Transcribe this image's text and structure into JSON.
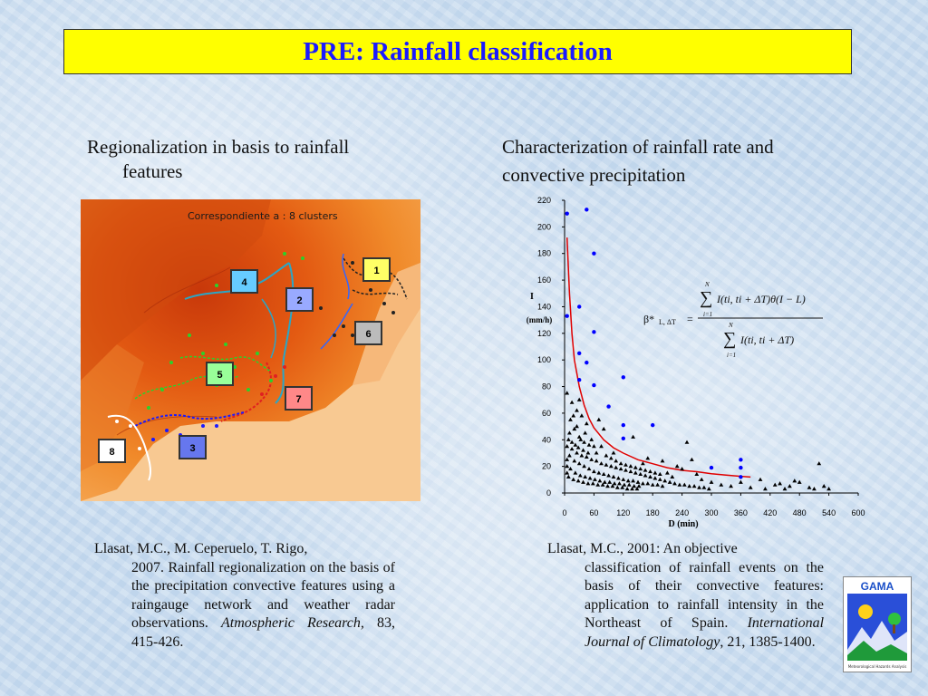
{
  "title": "PRE: Rainfall classification",
  "left": {
    "heading_line1": "Regionalization in basis to rainfall",
    "heading_line2": "features",
    "map_caption": "Correspondiente a : 8 clusters",
    "cluster_labels": [
      "1",
      "2",
      "3",
      "4",
      "5",
      "6",
      "7",
      "8"
    ],
    "reference": {
      "line1": "Llasat, M.C., M. Ceperuelo, T. Rigo,",
      "line2": "2007. Rainfall regionalization on the basis of the precipitation convective features using a raingauge network and weather radar observations.",
      "journal": "Atmospheric Research,",
      "details": " 83, 415-426."
    }
  },
  "right": {
    "heading_line1": "Characterization of rainfall rate and",
    "heading_line2": "convective precipitation",
    "reference": {
      "line1": "Llasat, M.C., 2001: An objective",
      "line2": "classification of rainfall events on the basis of their convective features: application to rainfall intensity in the Northeast of Spain.",
      "journal": "International Journal of Climatology",
      "details": ", 21, 1385-1400."
    }
  },
  "formula": {
    "lhs": "β*",
    "lhs_sub": "L, ΔT",
    "equals": "=",
    "sum_top": "N",
    "sum_bottom": "i=1",
    "numerator": "I(ti, ti + ΔT)θ(I − L)",
    "denominator": "I(ti, ti + ΔT)"
  },
  "logo": {
    "text": "GAMA",
    "subtitle": "Meteorological Hazards Analysis"
  },
  "colors": {
    "title_bg": "#ffff00",
    "title_text": "#1a1aff",
    "fit_curve": "#e00000",
    "blue_points": "#0000ff",
    "black_points": "#000000"
  },
  "chart_data": {
    "type": "scatter",
    "xlabel": "D (min)",
    "ylabel": "I",
    "ylabel_unit": "(mm/h)",
    "xlim": [
      0,
      600
    ],
    "ylim": [
      0,
      220
    ],
    "xticks": [
      0,
      60,
      120,
      180,
      240,
      300,
      360,
      420,
      480,
      540,
      600
    ],
    "yticks": [
      0,
      20,
      40,
      60,
      80,
      100,
      120,
      140,
      160,
      180,
      200,
      220
    ],
    "series": [
      {
        "marker": "circle",
        "color": "#0000ff",
        "points": [
          [
            5,
            210
          ],
          [
            45,
            213
          ],
          [
            60,
            180
          ],
          [
            5,
            133
          ],
          [
            30,
            140
          ],
          [
            60,
            121
          ],
          [
            30,
            105
          ],
          [
            45,
            98
          ],
          [
            30,
            85
          ],
          [
            60,
            81
          ],
          [
            120,
            87
          ],
          [
            90,
            65
          ],
          [
            120,
            51
          ],
          [
            180,
            51
          ],
          [
            120,
            41
          ],
          [
            360,
            25
          ],
          [
            360,
            19
          ],
          [
            300,
            19
          ],
          [
            360,
            12
          ]
        ]
      },
      {
        "marker": "triangle",
        "color": "#000000",
        "points": [
          [
            5,
            75
          ],
          [
            15,
            68
          ],
          [
            25,
            62
          ],
          [
            35,
            58
          ],
          [
            45,
            52
          ],
          [
            20,
            48
          ],
          [
            10,
            45
          ],
          [
            30,
            42
          ],
          [
            40,
            38
          ],
          [
            50,
            36
          ],
          [
            60,
            35
          ],
          [
            15,
            33
          ],
          [
            25,
            30
          ],
          [
            35,
            28
          ],
          [
            45,
            27
          ],
          [
            55,
            25
          ],
          [
            65,
            24
          ],
          [
            75,
            22
          ],
          [
            85,
            21
          ],
          [
            95,
            20
          ],
          [
            105,
            19
          ],
          [
            115,
            18
          ],
          [
            125,
            17
          ],
          [
            135,
            16
          ],
          [
            145,
            15
          ],
          [
            155,
            14
          ],
          [
            165,
            13
          ],
          [
            175,
            12
          ],
          [
            185,
            11
          ],
          [
            195,
            10
          ],
          [
            205,
            9
          ],
          [
            215,
            8
          ],
          [
            225,
            7
          ],
          [
            235,
            6
          ],
          [
            245,
            6
          ],
          [
            255,
            5
          ],
          [
            265,
            5
          ],
          [
            275,
            4
          ],
          [
            285,
            4
          ],
          [
            295,
            3
          ],
          [
            10,
            28
          ],
          [
            20,
            24
          ],
          [
            30,
            22
          ],
          [
            40,
            20
          ],
          [
            50,
            18
          ],
          [
            60,
            16
          ],
          [
            70,
            15
          ],
          [
            80,
            14
          ],
          [
            90,
            13
          ],
          [
            100,
            12
          ],
          [
            110,
            11
          ],
          [
            120,
            10
          ],
          [
            130,
            9
          ],
          [
            140,
            9
          ],
          [
            150,
            8
          ],
          [
            160,
            7
          ],
          [
            170,
            7
          ],
          [
            180,
            6
          ],
          [
            190,
            6
          ],
          [
            200,
            5
          ],
          [
            12,
            18
          ],
          [
            22,
            15
          ],
          [
            32,
            13
          ],
          [
            42,
            12
          ],
          [
            52,
            11
          ],
          [
            62,
            10
          ],
          [
            72,
            9
          ],
          [
            82,
            8
          ],
          [
            92,
            8
          ],
          [
            102,
            7
          ],
          [
            112,
            7
          ],
          [
            122,
            6
          ],
          [
            132,
            6
          ],
          [
            142,
            5
          ],
          [
            152,
            5
          ],
          [
            8,
            12
          ],
          [
            18,
            10
          ],
          [
            28,
            9
          ],
          [
            38,
            8
          ],
          [
            48,
            7
          ],
          [
            58,
            7
          ],
          [
            68,
            6
          ],
          [
            78,
            6
          ],
          [
            88,
            5
          ],
          [
            98,
            5
          ],
          [
            108,
            4
          ],
          [
            118,
            4
          ],
          [
            128,
            3
          ],
          [
            138,
            3
          ],
          [
            148,
            3
          ],
          [
            160,
            22
          ],
          [
            200,
            24
          ],
          [
            240,
            18
          ],
          [
            260,
            25
          ],
          [
            220,
            12
          ],
          [
            280,
            10
          ],
          [
            300,
            8
          ],
          [
            320,
            6
          ],
          [
            340,
            5
          ],
          [
            360,
            8
          ],
          [
            380,
            4
          ],
          [
            400,
            10
          ],
          [
            410,
            3
          ],
          [
            440,
            7
          ],
          [
            460,
            5
          ],
          [
            480,
            8
          ],
          [
            500,
            4
          ],
          [
            510,
            3
          ],
          [
            520,
            22
          ],
          [
            530,
            5
          ],
          [
            540,
            3
          ],
          [
            430,
            6
          ],
          [
            450,
            3
          ],
          [
            470,
            9
          ],
          [
            250,
            38
          ],
          [
            80,
            48
          ],
          [
            140,
            42
          ],
          [
            30,
            70
          ],
          [
            70,
            55
          ],
          [
            100,
            30
          ],
          [
            170,
            26
          ],
          [
            210,
            15
          ],
          [
            230,
            20
          ],
          [
            270,
            14
          ],
          [
            5,
            35
          ],
          [
            5,
            25
          ],
          [
            5,
            20
          ],
          [
            5,
            15
          ],
          [
            8,
            40
          ],
          [
            12,
            55
          ],
          [
            18,
            58
          ],
          [
            25,
            50
          ],
          [
            15,
            38
          ],
          [
            22,
            36
          ],
          [
            28,
            34
          ],
          [
            33,
            40
          ],
          [
            38,
            32
          ],
          [
            42,
            45
          ],
          [
            48,
            30
          ],
          [
            55,
            40
          ],
          [
            65,
            30
          ],
          [
            75,
            35
          ],
          [
            85,
            28
          ],
          [
            95,
            26
          ],
          [
            105,
            24
          ],
          [
            115,
            22
          ],
          [
            125,
            21
          ],
          [
            135,
            20
          ],
          [
            145,
            19
          ],
          [
            155,
            18
          ],
          [
            165,
            17
          ],
          [
            175,
            16
          ],
          [
            185,
            15
          ],
          [
            195,
            14
          ]
        ]
      }
    ],
    "fit_curve": {
      "color": "#e00000",
      "points": [
        [
          5,
          192
        ],
        [
          10,
          150
        ],
        [
          15,
          120
        ],
        [
          20,
          100
        ],
        [
          30,
          80
        ],
        [
          40,
          66
        ],
        [
          50,
          56
        ],
        [
          60,
          49
        ],
        [
          80,
          40
        ],
        [
          100,
          34
        ],
        [
          120,
          30
        ],
        [
          150,
          25
        ],
        [
          180,
          22
        ],
        [
          210,
          19
        ],
        [
          240,
          17
        ],
        [
          270,
          16
        ],
        [
          300,
          14.5
        ],
        [
          330,
          13.5
        ],
        [
          360,
          12.5
        ],
        [
          380,
          12
        ]
      ]
    }
  }
}
